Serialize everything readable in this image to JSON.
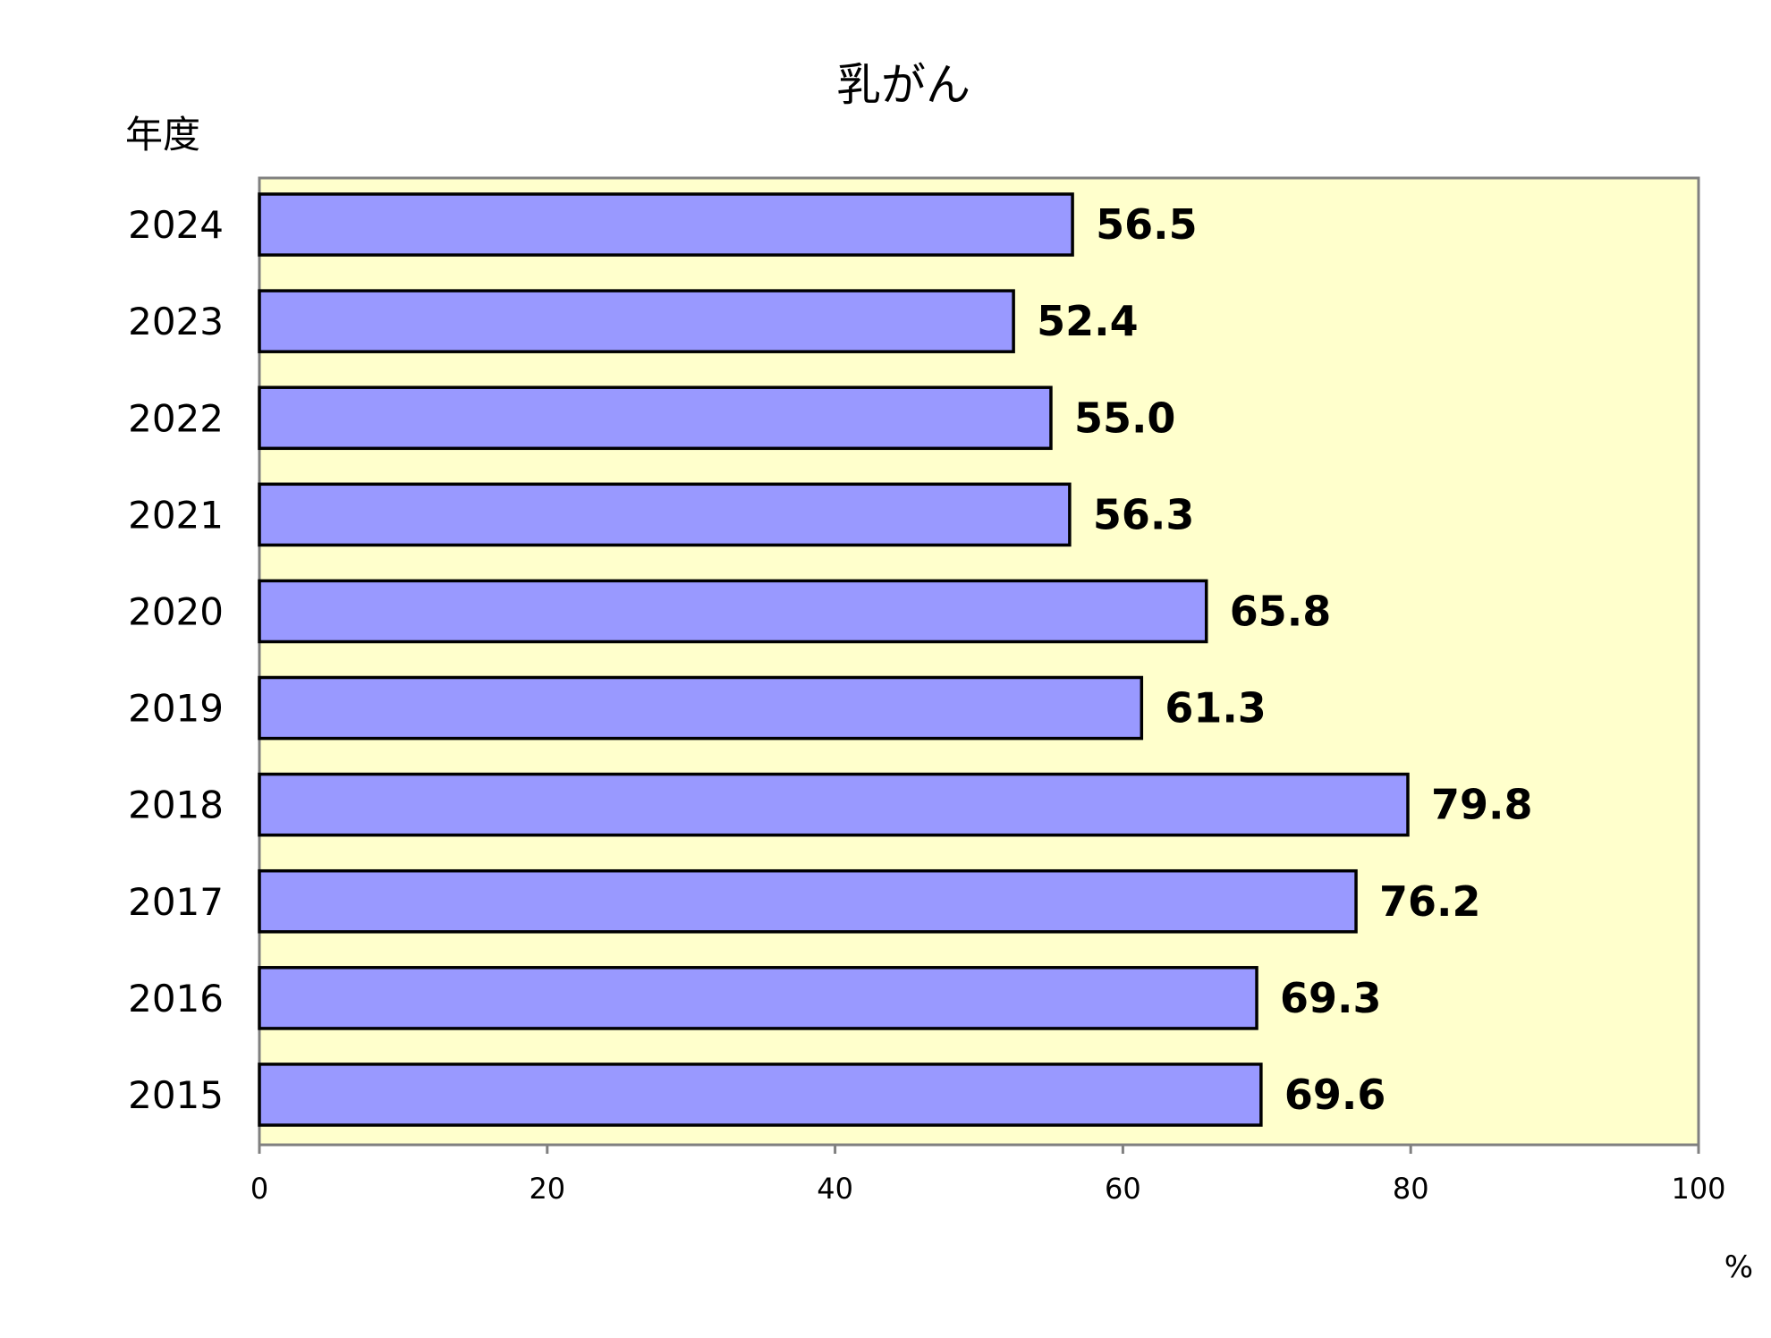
{
  "chart_data": {
    "type": "bar",
    "orientation": "horizontal",
    "title": "乳がん",
    "ylabel": "年度",
    "xlabel": "",
    "unit": "%",
    "categories": [
      "2024",
      "2023",
      "2022",
      "2021",
      "2020",
      "2019",
      "2018",
      "2017",
      "2016",
      "2015"
    ],
    "values": [
      56.5,
      52.4,
      55.0,
      56.3,
      65.8,
      61.3,
      79.8,
      76.2,
      69.3,
      69.6
    ],
    "value_labels": [
      "56.5",
      "52.4",
      "55.0",
      "56.3",
      "65.8",
      "61.3",
      "79.8",
      "76.2",
      "69.3",
      "69.6"
    ],
    "xlim": [
      0,
      100
    ],
    "xticks": [
      "0",
      "20",
      "40",
      "60",
      "80",
      "100"
    ],
    "grid": false,
    "legend": "none",
    "colors": {
      "bar_fill": "#9999ff",
      "bar_stroke": "#000000",
      "plot_background": "#ffffcc",
      "plot_border": "#808080"
    }
  }
}
